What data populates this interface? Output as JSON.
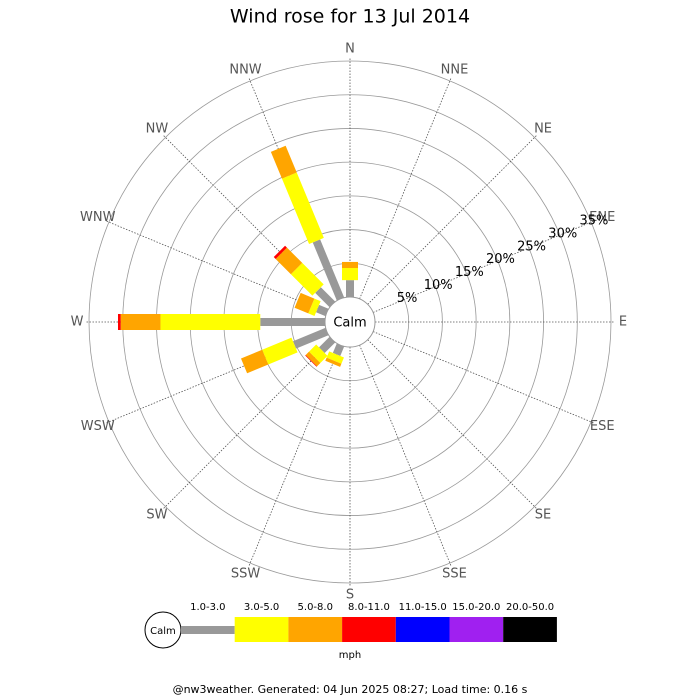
{
  "chart_data": {
    "type": "windrose",
    "title": "Wind rose for 13 Jul 2014",
    "center_label": "Calm",
    "categories": [
      "N",
      "NNE",
      "NE",
      "ENE",
      "E",
      "ESE",
      "SE",
      "SSE",
      "S",
      "SSW",
      "SW",
      "WSW",
      "W",
      "WNW",
      "NW",
      "NNW"
    ],
    "series": [
      {
        "name": "1.0-3.0",
        "color": "#999999",
        "values": [
          2.5,
          0,
          0,
          0,
          0,
          0,
          0,
          0,
          0,
          1.5,
          2.2,
          5.2,
          9.6,
          1.5,
          3,
          9.3
        ]
      },
      {
        "name": "3.0-5.0",
        "color": "#ffff00",
        "values": [
          1.8,
          0,
          0,
          0,
          0,
          0,
          0,
          0,
          0,
          1,
          1.5,
          4.7,
          14.8,
          1,
          4.5,
          10.5
        ]
      },
      {
        "name": "5.0-8.0",
        "color": "#ffa500",
        "values": [
          0.9,
          0,
          0,
          0,
          0,
          0,
          0,
          0,
          0,
          0.5,
          0.7,
          3.4,
          5.9,
          2.2,
          3.2,
          4.3
        ]
      },
      {
        "name": "8.0-11.0",
        "color": "#ff0000",
        "values": [
          0,
          0,
          0,
          0,
          0,
          0,
          0,
          0,
          0,
          0,
          0.1,
          0,
          0.4,
          0,
          0.4,
          0
        ]
      },
      {
        "name": "11.0-15.0",
        "color": "#0000ff",
        "values": [
          0,
          0,
          0,
          0,
          0,
          0,
          0,
          0,
          0,
          0,
          0,
          0,
          0,
          0,
          0,
          0
        ]
      },
      {
        "name": "15.0-20.0",
        "color": "#a020f0",
        "values": [
          0,
          0,
          0,
          0,
          0,
          0,
          0,
          0,
          0,
          0,
          0,
          0,
          0,
          0,
          0,
          0
        ]
      },
      {
        "name": "20.0-50.0",
        "color": "#000000",
        "values": [
          0,
          0,
          0,
          0,
          0,
          0,
          0,
          0,
          0,
          0,
          0,
          0,
          0,
          0,
          0,
          0
        ]
      }
    ],
    "rlim": [
      0,
      35
    ],
    "rticks": [
      {
        "value": 5,
        "label": "5%"
      },
      {
        "value": 10,
        "label": "10%"
      },
      {
        "value": 15,
        "label": "15%"
      },
      {
        "value": 20,
        "label": "20%"
      },
      {
        "value": 25,
        "label": "25%"
      },
      {
        "value": 30,
        "label": "30%"
      },
      {
        "value": 35,
        "label": "35%"
      }
    ],
    "legend_unit": "mph",
    "footer": "@nw3weather. Generated: 04 Jun 2025 08:27; Load time: 0.16 s"
  }
}
